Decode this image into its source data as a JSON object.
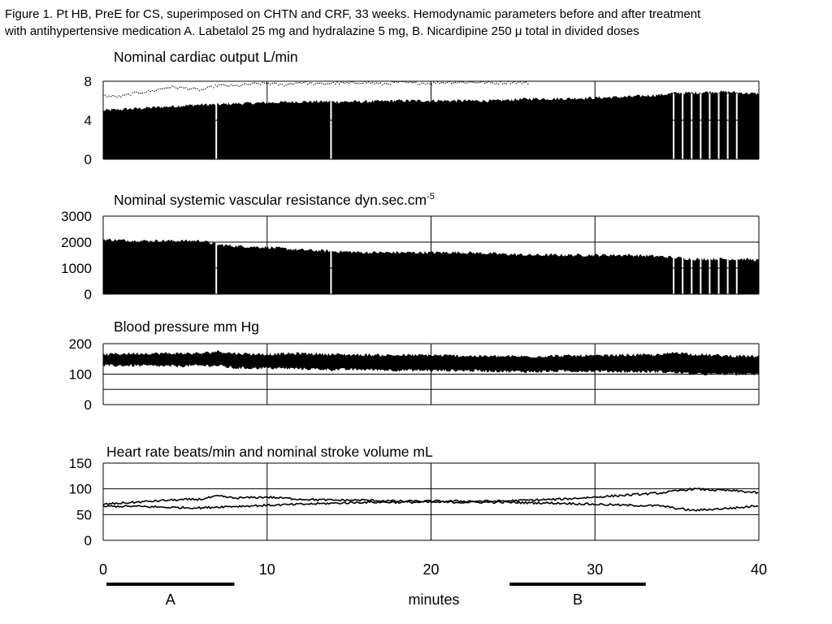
{
  "caption": {
    "line1": "Figure 1. Pt HB, PreE for CS, superimposed on CHTN and CRF, 33 weeks. Hemodynamic parameters before and after treatment",
    "line2": "with antihypertensive medication A. Labetalol 25 mg and hydralazine 5 mg, B. Nicardipine 250 μ total in divided doses"
  },
  "chart_data": [
    {
      "type": "area",
      "title": "Nominal cardiac output L/min",
      "ylim": [
        0,
        8
      ],
      "yticks": [
        "0",
        "4",
        "8"
      ],
      "ytick_values": [
        0,
        4,
        8
      ],
      "xlim": [
        0,
        40
      ],
      "x_unit": "minutes",
      "grid": "horizontal and vertical gridlines every 10 minutes",
      "series": [
        {
          "x": [
            0,
            2,
            4,
            6,
            7,
            8,
            10,
            12,
            14,
            16,
            18,
            20,
            22,
            24,
            26,
            28,
            30,
            32,
            34,
            35,
            36,
            37,
            38,
            39,
            40
          ],
          "values": [
            5.0,
            5.2,
            5.4,
            5.6,
            5.6,
            5.7,
            5.8,
            5.9,
            5.9,
            5.9,
            6.0,
            6.0,
            6.0,
            6.0,
            6.2,
            6.2,
            6.3,
            6.4,
            6.6,
            6.8,
            6.8,
            6.9,
            6.9,
            6.8,
            6.7
          ]
        },
        {
          "x": [
            0,
            1,
            2,
            3,
            4,
            5,
            6,
            7,
            8,
            9,
            10,
            11,
            12,
            13,
            14,
            15,
            16,
            17,
            18,
            19,
            20,
            21,
            22,
            23,
            24,
            25,
            26
          ],
          "values": [
            6.5,
            6.4,
            6.8,
            7.0,
            7.4,
            7.3,
            7.1,
            7.6,
            7.5,
            7.7,
            7.8,
            7.6,
            7.9,
            7.7,
            7.8,
            7.8,
            7.9,
            7.7,
            7.9,
            7.8,
            7.8,
            7.9,
            7.9,
            7.9,
            7.8,
            7.9,
            7.8
          ]
        }
      ]
    },
    {
      "type": "area",
      "title": "Nominal systemic vascular resistance dyn.sec.cm",
      "title_superscript": "-5",
      "ylim": [
        0,
        3000
      ],
      "yticks": [
        "0",
        "1000",
        "2000",
        "3000"
      ],
      "ytick_values": [
        0,
        1000,
        2000,
        3000
      ],
      "xlim": [
        0,
        40
      ],
      "series": [
        {
          "x": [
            0,
            2,
            4,
            6,
            7,
            8,
            10,
            12,
            14,
            16,
            18,
            20,
            22,
            24,
            26,
            28,
            30,
            32,
            34,
            35,
            36,
            37,
            38,
            39,
            40
          ],
          "values": [
            2100,
            2050,
            2050,
            2050,
            1900,
            1850,
            1800,
            1700,
            1650,
            1600,
            1600,
            1600,
            1600,
            1550,
            1500,
            1500,
            1500,
            1500,
            1450,
            1400,
            1350,
            1350,
            1350,
            1350,
            1300
          ]
        }
      ]
    },
    {
      "type": "area",
      "title": "Blood pressure mm Hg",
      "ylim": [
        0,
        200
      ],
      "yticks": [
        "0",
        "100",
        "200"
      ],
      "ytick_values": [
        0,
        100,
        200
      ],
      "xlim": [
        0,
        40
      ],
      "series": [
        {
          "x": [
            0,
            2,
            4,
            6,
            7,
            8,
            10,
            12,
            14,
            16,
            18,
            20,
            22,
            24,
            26,
            28,
            30,
            32,
            34,
            35,
            36,
            38,
            40
          ],
          "values": [
            165,
            168,
            168,
            168,
            175,
            168,
            165,
            168,
            165,
            163,
            162,
            162,
            160,
            158,
            158,
            160,
            160,
            163,
            163,
            172,
            165,
            160,
            158
          ]
        },
        {
          "x": [
            0,
            2,
            4,
            6,
            7,
            8,
            10,
            12,
            14,
            16,
            18,
            20,
            22,
            24,
            26,
            28,
            30,
            32,
            34,
            35,
            36,
            38,
            40
          ],
          "values": [
            128,
            128,
            126,
            128,
            128,
            120,
            120,
            118,
            115,
            115,
            113,
            112,
            112,
            110,
            108,
            110,
            110,
            108,
            108,
            105,
            100,
            100,
            100
          ]
        }
      ]
    },
    {
      "type": "line",
      "title": "Heart rate beats/min and nominal stroke volume mL",
      "ylim": [
        0,
        150
      ],
      "yticks": [
        "0",
        "50",
        "100",
        "150"
      ],
      "ytick_values": [
        0,
        50,
        100,
        150
      ],
      "xlim": [
        0,
        40
      ],
      "xticks": [
        "0",
        "10",
        "20",
        "30",
        "40"
      ],
      "xtick_values": [
        0,
        10,
        20,
        30,
        40
      ],
      "series": [
        {
          "x": [
            0,
            2,
            4,
            6,
            7,
            8,
            10,
            12,
            14,
            16,
            18,
            20,
            22,
            24,
            26,
            28,
            30,
            32,
            34,
            35,
            36,
            37,
            38,
            39,
            40
          ],
          "values": [
            70,
            74,
            78,
            80,
            86,
            82,
            84,
            80,
            78,
            78,
            76,
            76,
            76,
            76,
            78,
            80,
            84,
            88,
            92,
            96,
            100,
            98,
            97,
            95,
            92
          ]
        },
        {
          "x": [
            0,
            2,
            4,
            6,
            7,
            8,
            10,
            12,
            14,
            16,
            18,
            20,
            22,
            24,
            26,
            28,
            30,
            32,
            34,
            35,
            36,
            37,
            38,
            39,
            40
          ],
          "values": [
            66,
            66,
            64,
            63,
            65,
            66,
            68,
            70,
            72,
            74,
            74,
            74,
            74,
            74,
            73,
            72,
            70,
            68,
            67,
            62,
            58,
            60,
            62,
            64,
            68
          ]
        }
      ]
    }
  ],
  "x_axis": {
    "label": "minutes",
    "range": [
      0,
      40
    ]
  },
  "treatment_bars": [
    {
      "label": "A",
      "start": 0.2,
      "end": 8.0
    },
    {
      "label": "B",
      "start": 24.8,
      "end": 33.1
    }
  ],
  "colors": {
    "trace": "#000000",
    "grid": "#000000",
    "background": "#ffffff"
  }
}
